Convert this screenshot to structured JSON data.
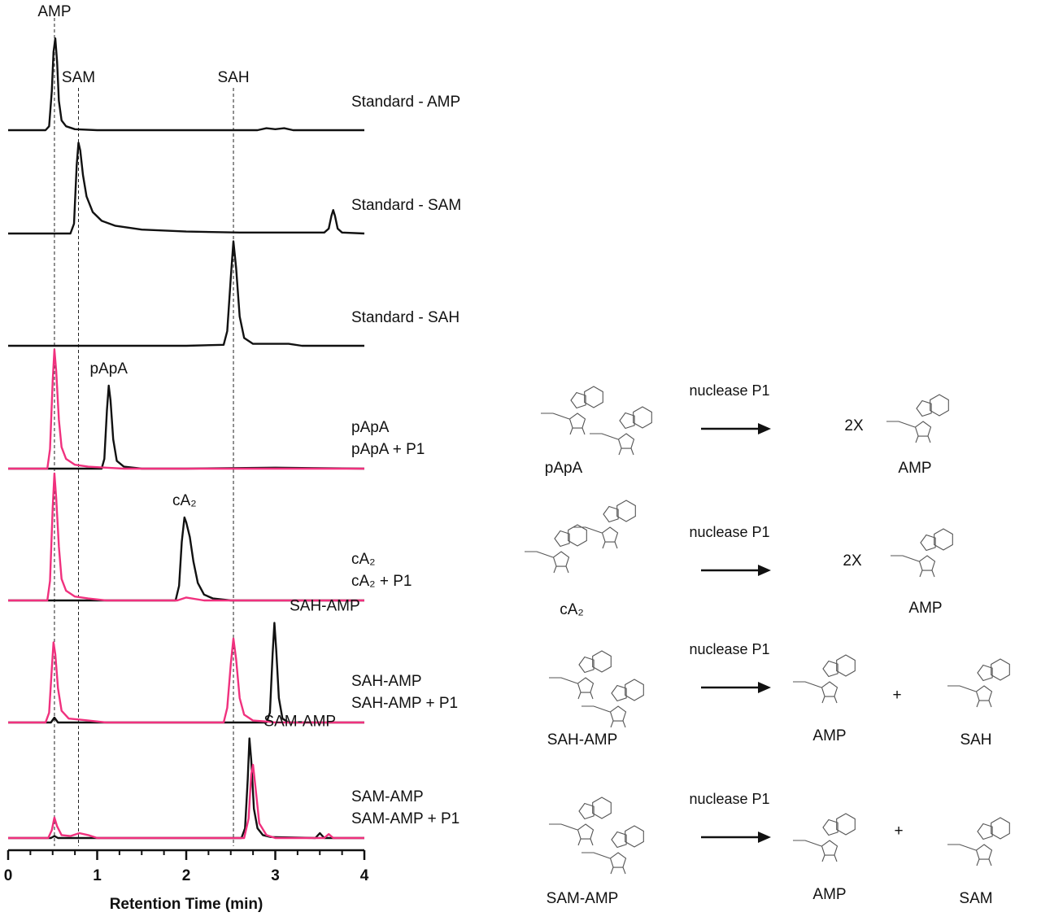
{
  "chart_data": {
    "type": "chromatogram",
    "xlabel": "Retention Time (min)",
    "xlim": [
      0,
      4
    ],
    "xticks": [
      0,
      1,
      2,
      3,
      4
    ],
    "ylim": [
      0,
      130
    ],
    "markers": [
      {
        "label": "AMP",
        "x": 0.52
      },
      {
        "label": "SAM",
        "x": 0.79
      },
      {
        "label": "SAH",
        "x": 2.53
      }
    ],
    "panels": [
      {
        "series": [
          {
            "name": "Standard - AMP",
            "color": "#111111",
            "x": [
              0,
              0.42,
              0.46,
              0.49,
              0.51,
              0.53,
              0.55,
              0.57,
              0.6,
              0.65,
              0.75,
              1.0,
              2.8,
              2.9,
              3.0,
              3.1,
              3.2,
              4
            ],
            "values": [
              0,
              0,
              4,
              40,
              80,
              94,
              70,
              30,
              10,
              4,
              1,
              0,
              0,
              2,
              1,
              2,
              0,
              0
            ]
          }
        ],
        "peak_labels": []
      },
      {
        "series": [
          {
            "name": "Standard - SAM",
            "color": "#111111",
            "x": [
              0,
              0.7,
              0.74,
              0.77,
              0.79,
              0.81,
              0.84,
              0.88,
              0.95,
              1.05,
              1.2,
              1.5,
              2.0,
              2.6,
              3.0,
              3.55,
              3.6,
              3.63,
              3.65,
              3.67,
              3.7,
              3.75,
              4
            ],
            "values": [
              0,
              0,
              10,
              70,
              93,
              85,
              60,
              38,
              22,
              13,
              8,
              4,
              2,
              1,
              1,
              1,
              5,
              18,
              24,
              18,
              5,
              1,
              0
            ]
          }
        ],
        "peak_labels": []
      },
      {
        "series": [
          {
            "name": "Standard - SAH",
            "color": "#111111",
            "x": [
              0,
              2.0,
              2.42,
              2.46,
              2.5,
              2.53,
              2.56,
              2.6,
              2.65,
              2.75,
              2.95,
              3.15,
              3.3,
              4
            ],
            "values": [
              0,
              0,
              1,
              15,
              70,
              107,
              80,
              30,
              8,
              2,
              2,
              2,
              0,
              0
            ]
          }
        ],
        "peak_labels": []
      },
      {
        "series": [
          {
            "name": "pApA",
            "color": "#111111",
            "x": [
              0,
              1.05,
              1.08,
              1.11,
              1.13,
              1.15,
              1.18,
              1.22,
              1.3,
              1.5,
              2,
              3,
              4
            ],
            "values": [
              0,
              0,
              10,
              60,
              85,
              70,
              30,
              8,
              2,
              0,
              0,
              1,
              0
            ]
          },
          {
            "name": "pApA + P1",
            "color": "#f0317e",
            "x": [
              0,
              0.44,
              0.47,
              0.5,
              0.52,
              0.54,
              0.57,
              0.6,
              0.65,
              0.75,
              0.9,
              1.1,
              1.3,
              4
            ],
            "values": [
              0,
              0,
              20,
              90,
              122,
              100,
              50,
              22,
              10,
              4,
              2,
              1,
              0,
              0
            ]
          }
        ],
        "peak_labels": [
          {
            "label": "pApA",
            "x": 1.13
          }
        ]
      },
      {
        "series": [
          {
            "name": "cA₂",
            "color": "#111111",
            "x": [
              0,
              1.88,
              1.92,
              1.95,
              1.98,
              2.0,
              2.04,
              2.08,
              2.13,
              2.2,
              2.3,
              2.5,
              4
            ],
            "values": [
              0,
              0,
              15,
              60,
              85,
              80,
              65,
              40,
              18,
              6,
              2,
              0,
              0
            ]
          },
          {
            "name": "cA₂ + P1",
            "color": "#f0317e",
            "x": [
              0,
              0.44,
              0.47,
              0.5,
              0.52,
              0.54,
              0.57,
              0.6,
              0.65,
              0.75,
              0.9,
              1.1,
              1.9,
              2.0,
              2.2,
              4
            ],
            "values": [
              0,
              0,
              20,
              95,
              130,
              105,
              55,
              22,
              10,
              4,
              2,
              0,
              0,
              3,
              0,
              0
            ]
          }
        ],
        "peak_labels": [
          {
            "label": "cA₂",
            "x": 1.98
          }
        ]
      },
      {
        "series": [
          {
            "name": "SAH-AMP",
            "color": "#111111",
            "x": [
              0,
              0.48,
              0.52,
              0.56,
              0.7,
              2.9,
              2.94,
              2.97,
              2.99,
              3.01,
              3.04,
              3.08,
              3.15,
              4
            ],
            "values": [
              0,
              0,
              5,
              0,
              0,
              0,
              10,
              70,
              102,
              75,
              25,
              4,
              0,
              0
            ]
          },
          {
            "name": "SAH-AMP + P1",
            "color": "#f0317e",
            "x": [
              0,
              0.42,
              0.46,
              0.49,
              0.51,
              0.53,
              0.56,
              0.6,
              0.68,
              0.8,
              0.9,
              1.1,
              2.42,
              2.46,
              2.5,
              2.53,
              2.56,
              2.6,
              2.65,
              2.75,
              2.9,
              3.0,
              4
            ],
            "values": [
              0,
              0,
              10,
              55,
              82,
              70,
              35,
              12,
              4,
              3,
              2,
              0,
              0,
              15,
              60,
              86,
              65,
              25,
              8,
              2,
              1,
              0,
              0
            ]
          }
        ],
        "peak_labels": [
          {
            "label": "SAH-AMP",
            "x": 2.99
          }
        ]
      },
      {
        "series": [
          {
            "name": "SAM-AMP",
            "color": "#111111",
            "x": [
              0,
              0.48,
              0.52,
              0.56,
              0.8,
              2.62,
              2.66,
              2.69,
              2.71,
              2.73,
              2.76,
              2.8,
              2.86,
              2.95,
              3.45,
              3.5,
              3.55,
              4
            ],
            "values": [
              0,
              0,
              2,
              0,
              0,
              0,
              10,
              60,
              102,
              80,
              30,
              10,
              3,
              1,
              0,
              5,
              0,
              0
            ]
          },
          {
            "name": "SAM-AMP + P1",
            "color": "#f0317e",
            "x": [
              0,
              0.45,
              0.49,
              0.52,
              0.55,
              0.6,
              0.7,
              0.8,
              0.9,
              1.0,
              2.65,
              2.7,
              2.73,
              2.75,
              2.78,
              2.82,
              2.9,
              3.0,
              3.55,
              3.6,
              3.65,
              4
            ],
            "values": [
              0,
              0,
              8,
              21,
              12,
              3,
              2,
              5,
              3,
              0,
              0,
              20,
              65,
              75,
              50,
              15,
              3,
              0,
              0,
              4,
              0,
              0
            ]
          }
        ],
        "peak_labels": [
          {
            "label": "SAM-AMP",
            "x": 2.71
          }
        ]
      }
    ]
  },
  "reactions": [
    {
      "enzyme": "nuclease P1",
      "substrate": "pApA",
      "coefficient": "2X",
      "products": [
        "AMP"
      ]
    },
    {
      "enzyme": "nuclease P1",
      "substrate": "cA₂",
      "coefficient": "2X",
      "products": [
        "AMP"
      ]
    },
    {
      "enzyme": "nuclease P1",
      "substrate": "SAH-AMP",
      "operator": "+",
      "products": [
        "AMP",
        "SAH"
      ]
    },
    {
      "enzyme": "nuclease P1",
      "substrate": "SAM-AMP",
      "operator": "+",
      "products": [
        "AMP",
        "SAM"
      ]
    }
  ]
}
